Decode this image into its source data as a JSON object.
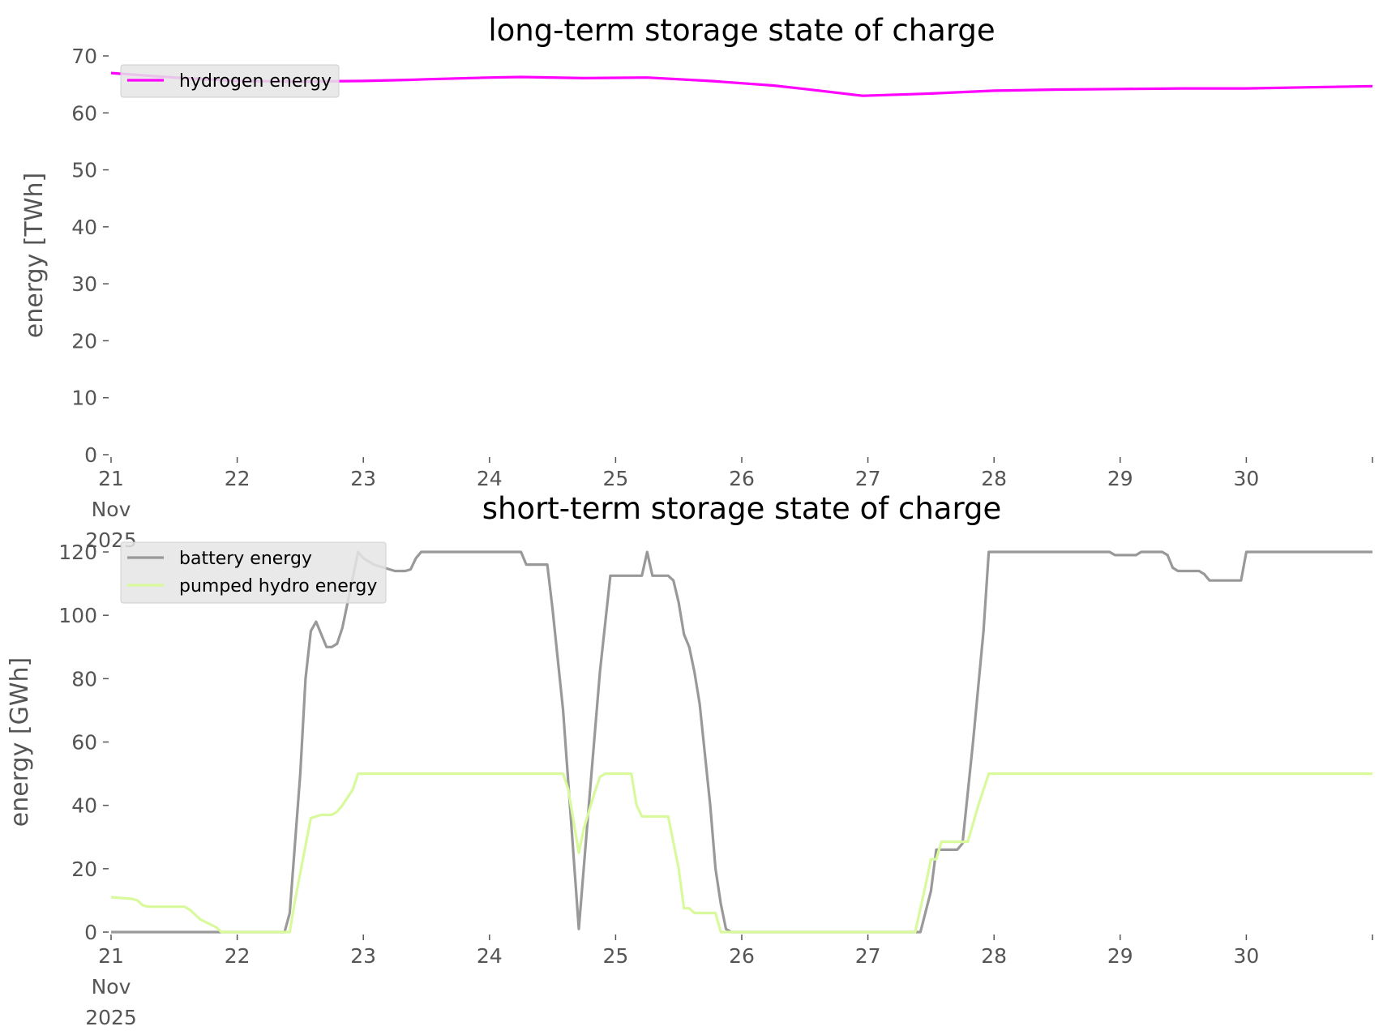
{
  "chart_data": [
    {
      "type": "line",
      "title": "long-term storage state of charge",
      "xlabel": "",
      "ylabel": "energy [TWh]",
      "xlim": [
        "2025-11-21",
        "2025-12-01"
      ],
      "ylim": [
        0,
        70
      ],
      "yticks": [
        0,
        10,
        20,
        30,
        40,
        50,
        60,
        70
      ],
      "xtick_labels": [
        "21\nNov\n2025",
        "22",
        "23",
        "24",
        "25",
        "26",
        "27",
        "28",
        "29",
        "30"
      ],
      "grid": false,
      "legend": "top-left",
      "series": [
        {
          "name": "hydrogen energy",
          "color": "#ff00ff",
          "points": [
            [
              "2025-11-21 00:00",
              67.0
            ],
            [
              "2025-11-21 12:00",
              66.2
            ],
            [
              "2025-11-22 00:00",
              65.6
            ],
            [
              "2025-11-22 12:00",
              65.5
            ],
            [
              "2025-11-23 00:00",
              65.6
            ],
            [
              "2025-11-23 09:00",
              65.8
            ],
            [
              "2025-11-23 12:00",
              65.9
            ],
            [
              "2025-11-24 00:00",
              66.2
            ],
            [
              "2025-11-24 06:00",
              66.3
            ],
            [
              "2025-11-24 18:00",
              66.1
            ],
            [
              "2025-11-25 06:00",
              66.2
            ],
            [
              "2025-11-25 18:00",
              65.6
            ],
            [
              "2025-11-26 06:00",
              64.8
            ],
            [
              "2025-11-26 12:00",
              64.2
            ],
            [
              "2025-11-26 23:00",
              63.0
            ],
            [
              "2025-11-27 12:00",
              63.4
            ],
            [
              "2025-11-28 00:00",
              63.9
            ],
            [
              "2025-11-28 12:00",
              64.1
            ],
            [
              "2025-11-29 00:00",
              64.2
            ],
            [
              "2025-11-29 12:00",
              64.3
            ],
            [
              "2025-11-30 00:00",
              64.3
            ],
            [
              "2025-11-30 12:00",
              64.5
            ],
            [
              "2025-12-01 00:00",
              64.7
            ]
          ]
        }
      ]
    },
    {
      "type": "line",
      "title": "short-term storage state of charge",
      "xlabel": "",
      "ylabel": "energy [GWh]",
      "xlim": [
        "2025-11-21",
        "2025-12-01"
      ],
      "ylim": [
        0,
        120
      ],
      "yticks": [
        0,
        20,
        40,
        60,
        80,
        100,
        120
      ],
      "xtick_labels": [
        "21\nNov\n2025",
        "22",
        "23",
        "24",
        "25",
        "26",
        "27",
        "28",
        "29",
        "30"
      ],
      "grid": false,
      "legend": "top-left",
      "series": [
        {
          "name": "battery energy",
          "color": "#999999",
          "points": [
            [
              "2025-11-21 00:00",
              0
            ],
            [
              "2025-11-22 09:00",
              0
            ],
            [
              "2025-11-22 10:00",
              6
            ],
            [
              "2025-11-22 12:00",
              50
            ],
            [
              "2025-11-22 13:00",
              80
            ],
            [
              "2025-11-22 14:00",
              95
            ],
            [
              "2025-11-22 15:00",
              98
            ],
            [
              "2025-11-22 16:00",
              94
            ],
            [
              "2025-11-22 17:00",
              90
            ],
            [
              "2025-11-22 18:00",
              90
            ],
            [
              "2025-11-22 19:00",
              91
            ],
            [
              "2025-11-22 20:00",
              96
            ],
            [
              "2025-11-22 21:00",
              104
            ],
            [
              "2025-11-22 23:00",
              120
            ],
            [
              "2025-11-23 00:00",
              118
            ],
            [
              "2025-11-23 02:00",
              116
            ],
            [
              "2025-11-23 04:00",
              115
            ],
            [
              "2025-11-23 06:00",
              114
            ],
            [
              "2025-11-23 08:00",
              114
            ],
            [
              "2025-11-23 09:00",
              114.5
            ],
            [
              "2025-11-23 10:00",
              118
            ],
            [
              "2025-11-23 11:00",
              120
            ],
            [
              "2025-11-24 06:00",
              120
            ],
            [
              "2025-11-24 07:00",
              116
            ],
            [
              "2025-11-24 11:00",
              116
            ],
            [
              "2025-11-24 12:00",
              102
            ],
            [
              "2025-11-24 14:00",
              70
            ],
            [
              "2025-11-24 17:00",
              1
            ],
            [
              "2025-11-24 19:00",
              42
            ],
            [
              "2025-11-24 21:00",
              82
            ],
            [
              "2025-11-24 23:00",
              112.5
            ],
            [
              "2025-11-25 05:00",
              112.5
            ],
            [
              "2025-11-25 06:00",
              120
            ],
            [
              "2025-11-25 07:00",
              112.5
            ],
            [
              "2025-11-25 10:00",
              112.5
            ],
            [
              "2025-11-25 11:00",
              111
            ],
            [
              "2025-11-25 12:00",
              104
            ],
            [
              "2025-11-25 13:00",
              94
            ],
            [
              "2025-11-25 14:00",
              90
            ],
            [
              "2025-11-25 15:00",
              82
            ],
            [
              "2025-11-25 16:00",
              72
            ],
            [
              "2025-11-25 18:00",
              40
            ],
            [
              "2025-11-25 19:00",
              20
            ],
            [
              "2025-11-25 20:00",
              9
            ],
            [
              "2025-11-25 21:00",
              1
            ],
            [
              "2025-11-25 22:00",
              0
            ],
            [
              "2025-11-27 10:00",
              0
            ],
            [
              "2025-11-27 12:00",
              13
            ],
            [
              "2025-11-27 13:00",
              26
            ],
            [
              "2025-11-27 17:00",
              26
            ],
            [
              "2025-11-27 18:00",
              28
            ],
            [
              "2025-11-27 20:00",
              60
            ],
            [
              "2025-11-27 22:00",
              95
            ],
            [
              "2025-11-27 23:00",
              120
            ],
            [
              "2025-11-28 22:00",
              120
            ],
            [
              "2025-11-28 23:00",
              119
            ],
            [
              "2025-11-29 03:00",
              119
            ],
            [
              "2025-11-29 04:00",
              120
            ],
            [
              "2025-11-29 08:00",
              120
            ],
            [
              "2025-11-29 09:00",
              119
            ],
            [
              "2025-11-29 10:00",
              115
            ],
            [
              "2025-11-29 11:00",
              114
            ],
            [
              "2025-11-29 15:00",
              114
            ],
            [
              "2025-11-29 16:00",
              113
            ],
            [
              "2025-11-29 17:00",
              111
            ],
            [
              "2025-11-29 23:00",
              111
            ],
            [
              "2025-11-30 00:00",
              120
            ],
            [
              "2025-12-01 00:00",
              120
            ]
          ]
        },
        {
          "name": "pumped hydro energy",
          "color": "#d9f99d",
          "points": [
            [
              "2025-11-21 00:00",
              11
            ],
            [
              "2025-11-21 04:00",
              10.5
            ],
            [
              "2025-11-21 05:00",
              10
            ],
            [
              "2025-11-21 06:00",
              8.5
            ],
            [
              "2025-11-21 07:00",
              8
            ],
            [
              "2025-11-21 14:00",
              8
            ],
            [
              "2025-11-21 15:00",
              7
            ],
            [
              "2025-11-21 17:00",
              4
            ],
            [
              "2025-11-21 20:00",
              1.5
            ],
            [
              "2025-11-21 21:00",
              0
            ],
            [
              "2025-11-22 10:00",
              0
            ],
            [
              "2025-11-22 11:00",
              10
            ],
            [
              "2025-11-22 14:00",
              36
            ],
            [
              "2025-11-22 16:00",
              37
            ],
            [
              "2025-11-22 18:00",
              37
            ],
            [
              "2025-11-22 19:00",
              38
            ],
            [
              "2025-11-22 20:00",
              40
            ],
            [
              "2025-11-22 22:00",
              45
            ],
            [
              "2025-11-22 23:00",
              50
            ],
            [
              "2025-11-24 14:00",
              50
            ],
            [
              "2025-11-24 15:00",
              45
            ],
            [
              "2025-11-24 17:00",
              25
            ],
            [
              "2025-11-24 18:00",
              33
            ],
            [
              "2025-11-24 20:00",
              44
            ],
            [
              "2025-11-24 21:00",
              49
            ],
            [
              "2025-11-24 22:00",
              50
            ],
            [
              "2025-11-25 03:00",
              50
            ],
            [
              "2025-11-25 04:00",
              40
            ],
            [
              "2025-11-25 05:00",
              36.5
            ],
            [
              "2025-11-25 10:00",
              36.5
            ],
            [
              "2025-11-25 12:00",
              20
            ],
            [
              "2025-11-25 13:00",
              7.5
            ],
            [
              "2025-11-25 14:00",
              7.5
            ],
            [
              "2025-11-25 15:00",
              6
            ],
            [
              "2025-11-25 19:00",
              6
            ],
            [
              "2025-11-25 20:00",
              0
            ],
            [
              "2025-11-27 09:00",
              0
            ],
            [
              "2025-11-27 11:00",
              15
            ],
            [
              "2025-11-27 12:00",
              23
            ],
            [
              "2025-11-27 13:00",
              23
            ],
            [
              "2025-11-27 14:00",
              28.5
            ],
            [
              "2025-11-27 19:00",
              28.5
            ],
            [
              "2025-11-27 21:00",
              40
            ],
            [
              "2025-11-27 23:00",
              50
            ],
            [
              "2025-12-01 00:00",
              50
            ]
          ]
        }
      ]
    }
  ]
}
